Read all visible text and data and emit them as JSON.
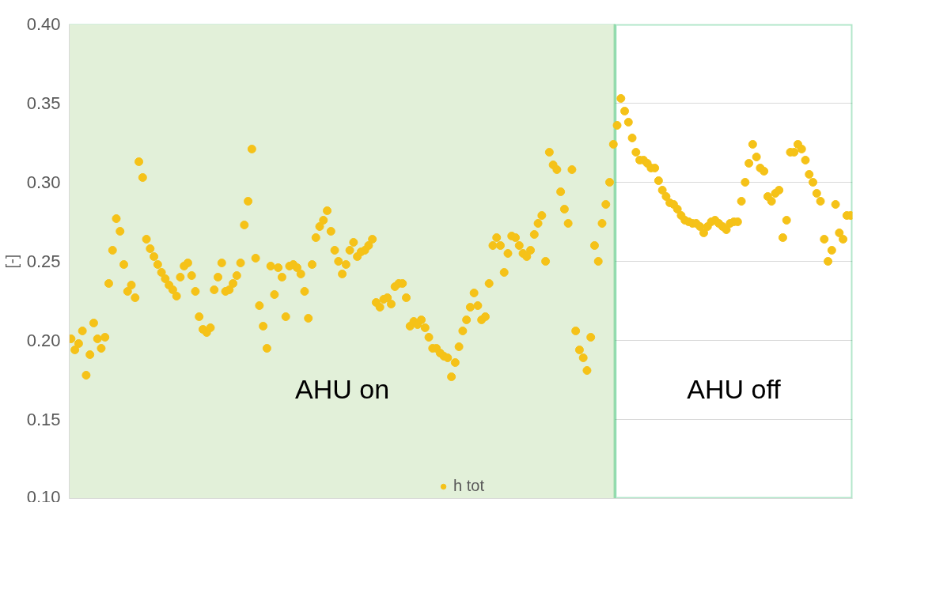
{
  "chart_data": {
    "type": "scatter",
    "ylabel": "[-]",
    "categories": [
      null,
      null,
      null,
      null,
      null,
      null,
      null,
      null,
      null,
      null,
      null,
      null,
      null,
      null,
      null,
      null,
      null,
      null,
      null,
      null,
      null,
      null,
      null,
      null,
      null,
      null,
      null,
      null,
      null,
      null,
      null,
      null,
      null,
      null,
      null,
      null,
      null,
      null,
      null,
      null,
      null,
      null,
      null,
      null,
      null,
      null,
      null,
      null,
      null,
      null,
      null,
      null,
      null,
      null,
      null,
      null,
      null,
      null,
      null,
      null,
      null,
      null,
      null,
      null,
      null,
      null,
      null,
      null,
      null,
      null,
      null,
      null,
      null,
      null,
      null,
      null,
      null,
      null,
      null,
      null,
      null,
      null,
      null,
      null,
      null,
      null,
      null,
      null,
      null,
      null,
      null,
      null,
      null,
      null,
      null,
      null,
      null,
      null,
      null,
      null,
      null,
      null,
      null,
      null,
      null,
      null,
      null,
      null,
      null,
      null,
      null,
      null,
      null,
      null,
      null,
      null,
      null,
      null,
      null,
      null,
      null,
      null,
      null,
      null,
      null,
      null,
      null,
      null,
      null,
      null,
      null,
      null,
      null,
      null,
      null,
      null,
      null,
      null,
      null,
      null,
      null,
      null,
      null,
      null,
      null,
      null,
      null,
      null,
      null,
      null,
      null,
      null,
      null,
      null,
      null,
      null,
      null,
      null,
      null,
      null,
      null,
      null,
      null,
      null,
      null,
      null,
      null,
      null,
      null,
      null,
      null,
      null,
      null,
      null,
      null,
      null,
      null,
      null,
      null,
      null,
      null,
      null,
      null,
      null,
      null,
      null,
      null,
      null,
      null,
      null,
      null,
      null,
      null,
      null,
      null,
      null,
      null,
      null,
      null,
      null,
      null,
      null,
      null,
      null,
      null,
      null,
      null,
      null
    ],
    "series": [
      {
        "name": "h tot",
        "color": "#f5c218",
        "values": [
          0.201,
          0.194,
          0.198,
          0.206,
          0.178,
          0.191,
          0.211,
          0.201,
          0.195,
          0.202,
          0.236,
          0.257,
          0.277,
          0.269,
          0.248,
          0.231,
          0.235,
          0.227,
          0.313,
          0.303,
          0.264,
          0.258,
          0.253,
          0.248,
          0.243,
          0.239,
          0.235,
          0.232,
          0.228,
          0.24,
          0.247,
          0.249,
          0.241,
          0.231,
          0.215,
          0.207,
          0.205,
          0.208,
          0.232,
          0.24,
          0.249,
          0.231,
          0.232,
          0.236,
          0.241,
          0.249,
          0.273,
          0.288,
          0.321,
          0.252,
          0.222,
          0.209,
          0.195,
          0.247,
          0.229,
          0.246,
          0.24,
          0.215,
          0.247,
          0.248,
          0.246,
          0.242,
          0.231,
          0.214,
          0.248,
          0.265,
          0.272,
          0.276,
          0.282,
          0.269,
          0.257,
          0.25,
          0.242,
          0.248,
          0.257,
          0.262,
          0.253,
          0.256,
          0.257,
          0.26,
          0.264,
          0.224,
          0.221,
          0.226,
          0.227,
          0.223,
          0.234,
          0.236,
          0.236,
          0.227,
          0.209,
          0.212,
          0.21,
          0.213,
          0.208,
          0.202,
          0.195,
          0.195,
          0.192,
          0.19,
          0.189,
          0.177,
          0.186,
          0.196,
          0.206,
          0.213,
          0.221,
          0.23,
          0.222,
          0.213,
          0.215,
          0.236,
          0.26,
          0.265,
          0.26,
          0.243,
          0.255,
          0.266,
          0.265,
          0.26,
          0.255,
          0.253,
          0.257,
          0.267,
          0.274,
          0.279,
          0.25,
          0.319,
          0.311,
          0.308,
          0.294,
          0.283,
          0.274,
          0.308,
          0.206,
          0.194,
          0.189,
          0.181,
          0.202,
          0.26,
          0.25,
          0.274,
          0.286,
          0.3,
          0.324,
          0.336,
          0.353,
          0.345,
          0.338,
          0.328,
          0.319,
          0.314,
          0.314,
          0.312,
          0.309,
          0.309,
          0.301,
          0.295,
          0.291,
          0.287,
          0.286,
          0.283,
          0.279,
          0.276,
          0.275,
          0.274,
          0.274,
          0.272,
          0.268,
          0.272,
          0.275,
          0.276,
          0.274,
          0.272,
          0.27,
          0.274,
          0.275,
          0.275,
          0.288,
          0.3,
          0.312,
          0.324,
          0.316,
          0.309,
          0.307,
          0.291,
          0.288,
          0.293,
          0.295,
          0.265,
          0.276,
          0.319,
          0.319,
          0.324,
          0.321,
          0.314,
          0.305,
          0.3,
          0.293,
          0.288,
          0.264,
          0.25,
          0.257,
          0.286,
          0.268,
          0.264,
          0.279,
          0.279
        ]
      }
    ],
    "ylim": [
      0.1,
      0.4
    ],
    "yticks": [
      {
        "value": 0.1,
        "label": "0.10"
      },
      {
        "value": 0.15,
        "label": "0.15"
      },
      {
        "value": 0.2,
        "label": "0.20"
      },
      {
        "value": 0.25,
        "label": "0.25"
      },
      {
        "value": 0.3,
        "label": "0.30"
      },
      {
        "value": 0.35,
        "label": "0.35"
      },
      {
        "value": 0.4,
        "label": "0.40"
      }
    ],
    "grid": "y",
    "legend": "bottom",
    "marker": "circle",
    "annotations": [
      "AHU on",
      "AHU off"
    ]
  }
}
